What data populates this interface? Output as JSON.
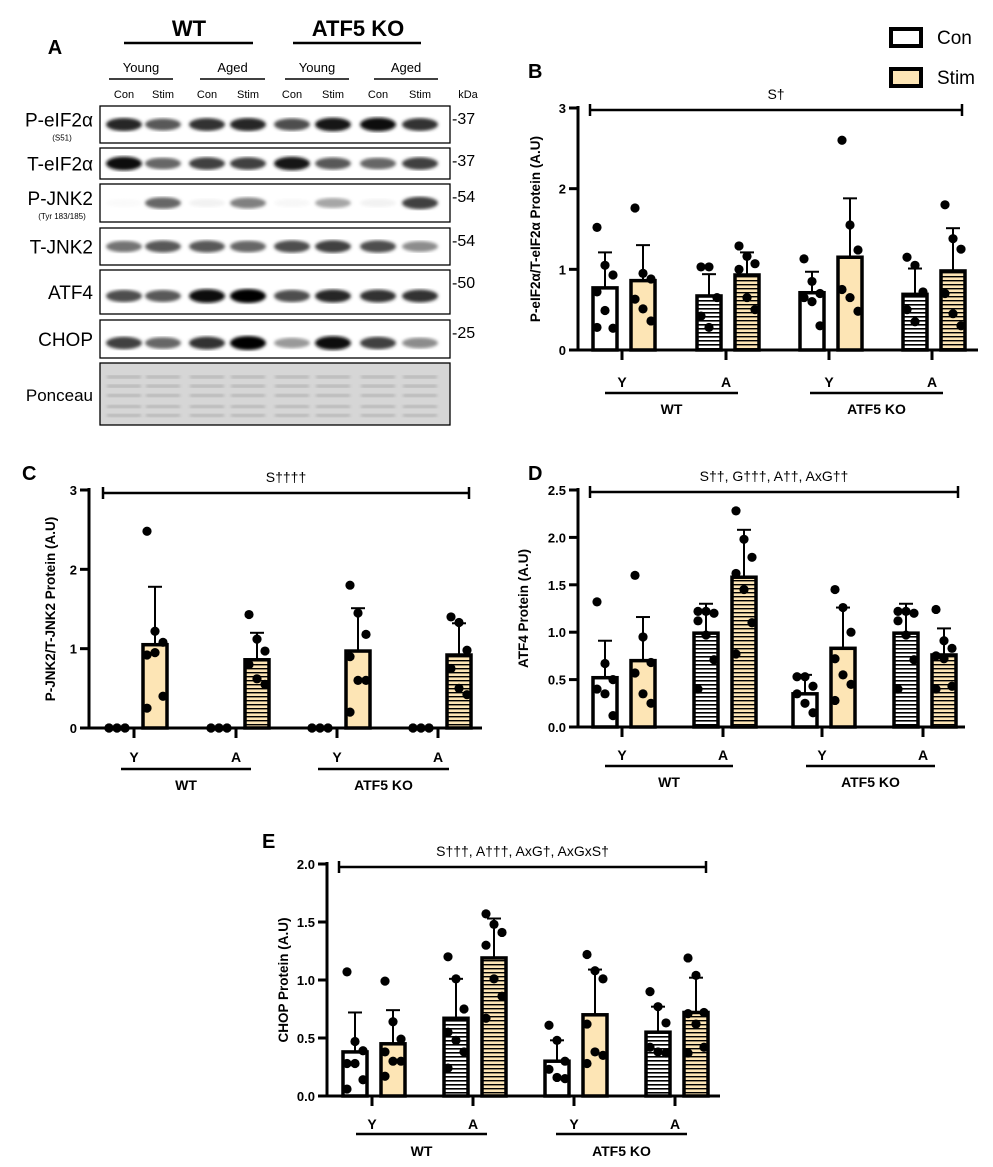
{
  "colors": {
    "con": "#ffffff",
    "stim": "#fde5b5",
    "ink": "#000000",
    "ponceau": "#d6d6d6"
  },
  "legend": {
    "items": [
      {
        "label": "Con",
        "color": "#ffffff"
      },
      {
        "label": "Stim",
        "color": "#fde5b5"
      }
    ]
  },
  "blot": {
    "panel": "A",
    "genotypes": [
      "WT",
      "ATF5 KO"
    ],
    "ages": [
      "Young",
      "Aged",
      "Young",
      "Aged"
    ],
    "lanes": [
      "Con",
      "Stim",
      "Con",
      "Stim",
      "Con",
      "Stim",
      "Con",
      "Stim"
    ],
    "kda_label": "kDa",
    "rows": [
      {
        "label": "P-eIF2α",
        "sub": "(S51)",
        "kda": "-37",
        "band_intensity": [
          0.85,
          0.65,
          0.8,
          0.85,
          0.7,
          0.9,
          0.95,
          0.8
        ]
      },
      {
        "label": "T-eIF2α",
        "sub": "",
        "kda": "-37",
        "band_intensity": [
          0.95,
          0.6,
          0.75,
          0.75,
          0.9,
          0.65,
          0.6,
          0.75
        ]
      },
      {
        "label": "P-JNK2",
        "sub": "(Tyr 183/185)",
        "kda": "-54",
        "band_intensity": [
          0.02,
          0.6,
          0.05,
          0.5,
          0.03,
          0.35,
          0.05,
          0.75
        ]
      },
      {
        "label": "T-JNK2",
        "sub": "",
        "kda": "-54",
        "band_intensity": [
          0.55,
          0.65,
          0.65,
          0.6,
          0.7,
          0.75,
          0.7,
          0.45
        ]
      },
      {
        "label": "ATF4",
        "sub": "",
        "kda": "-50",
        "band_intensity": [
          0.7,
          0.65,
          0.95,
          1.0,
          0.7,
          0.85,
          0.8,
          0.8
        ]
      },
      {
        "label": "CHOP",
        "sub": "",
        "kda": "-25",
        "band_intensity": [
          0.75,
          0.6,
          0.8,
          1.0,
          0.4,
          0.95,
          0.75,
          0.45
        ]
      },
      {
        "label": "Ponceau",
        "sub": "",
        "kda": "",
        "band_intensity": [
          0.5,
          0.5,
          0.5,
          0.5,
          0.5,
          0.5,
          0.5,
          0.5
        ]
      }
    ]
  },
  "chart_data": [
    {
      "panel": "B",
      "type": "bar",
      "ylabel": "P-eIF2α/T-eIF2α Protein (A.U)",
      "ylim": [
        0,
        3
      ],
      "yticks": [
        "0",
        "1",
        "2",
        "3"
      ],
      "significance": "S†",
      "age_labels": [
        "Y",
        "A",
        "Y",
        "A"
      ],
      "genotype_labels": [
        "WT",
        "ATF5 KO"
      ],
      "groups": [
        {
          "age": "Y",
          "genotype": "WT",
          "con": {
            "mean": 0.77,
            "sd_top": 1.21,
            "points": [
              1.52,
              1.05,
              0.93,
              0.72,
              0.49,
              0.27,
              0.28
            ]
          },
          "stim": {
            "mean": 0.86,
            "sd_top": 1.3,
            "points": [
              1.76,
              0.95,
              0.88,
              0.63,
              0.51,
              0.36
            ]
          }
        },
        {
          "age": "A",
          "genotype": "WT",
          "con": {
            "mean": 0.67,
            "sd_top": 0.94,
            "points": [
              1.03,
              1.03,
              0.65,
              0.42,
              0.28
            ]
          },
          "stim": {
            "mean": 0.93,
            "sd_top": 1.21,
            "points": [
              1.29,
              1.16,
              1.07,
              1.0,
              0.65,
              0.5
            ]
          }
        },
        {
          "age": "Y",
          "genotype": "ATF5 KO",
          "con": {
            "mean": 0.71,
            "sd_top": 0.97,
            "points": [
              1.13,
              0.85,
              0.7,
              0.65,
              0.6,
              0.3
            ]
          },
          "stim": {
            "mean": 1.15,
            "sd_top": 1.88,
            "points": [
              2.6,
              1.55,
              1.24,
              0.75,
              0.65,
              0.48
            ]
          }
        },
        {
          "age": "A",
          "genotype": "ATF5 KO",
          "con": {
            "mean": 0.69,
            "sd_top": 1.01,
            "points": [
              1.15,
              1.05,
              0.72,
              0.5,
              0.35
            ]
          },
          "stim": {
            "mean": 0.98,
            "sd_top": 1.51,
            "points": [
              1.8,
              1.38,
              1.25,
              0.7,
              0.45,
              0.3
            ]
          }
        }
      ]
    },
    {
      "panel": "C",
      "type": "bar",
      "ylabel": "P-JNK2/T-JNK2 Protein (A.U)",
      "ylim": [
        0,
        3
      ],
      "yticks": [
        "0",
        "1",
        "2",
        "3"
      ],
      "significance": "S††††",
      "age_labels": [
        "Y",
        "A",
        "Y",
        "A"
      ],
      "genotype_labels": [
        "WT",
        "ATF5 KO"
      ],
      "groups": [
        {
          "age": "Y",
          "genotype": "WT",
          "con": {
            "mean": 0,
            "sd_top": 0,
            "points": [
              0,
              0,
              0,
              0,
              0,
              0
            ]
          },
          "stim": {
            "mean": 1.05,
            "sd_top": 1.78,
            "points": [
              2.48,
              1.22,
              1.08,
              0.92,
              0.95,
              0.4,
              0.25
            ]
          }
        },
        {
          "age": "A",
          "genotype": "WT",
          "con": {
            "mean": 0,
            "sd_top": 0,
            "points": [
              0,
              0,
              0,
              0,
              0,
              0
            ]
          },
          "stim": {
            "mean": 0.86,
            "sd_top": 1.2,
            "points": [
              1.43,
              1.12,
              0.97,
              0.8,
              0.62,
              0.55
            ]
          }
        },
        {
          "age": "Y",
          "genotype": "ATF5 KO",
          "con": {
            "mean": 0,
            "sd_top": 0,
            "points": [
              0,
              0,
              0,
              0,
              0,
              0
            ]
          },
          "stim": {
            "mean": 0.97,
            "sd_top": 1.51,
            "points": [
              1.8,
              1.45,
              1.18,
              0.9,
              0.6,
              0.6,
              0.2
            ]
          }
        },
        {
          "age": "A",
          "genotype": "ATF5 KO",
          "con": {
            "mean": 0,
            "sd_top": 0,
            "points": [
              0,
              0,
              0,
              0,
              0,
              0
            ]
          },
          "stim": {
            "mean": 0.92,
            "sd_top": 1.32,
            "points": [
              1.4,
              1.33,
              0.98,
              0.75,
              0.5,
              0.42
            ]
          }
        }
      ]
    },
    {
      "panel": "D",
      "type": "bar",
      "ylabel": "ATF4 Protein (A.U)",
      "ylim": [
        0,
        2.5
      ],
      "yticks": [
        "0.0",
        "0.5",
        "1.0",
        "1.5",
        "2.0",
        "2.5"
      ],
      "significance": "S††, G†††, A††, AxG††",
      "age_labels": [
        "Y",
        "A",
        "Y",
        "A"
      ],
      "genotype_labels": [
        "WT",
        "ATF5 KO"
      ],
      "groups": [
        {
          "age": "Y",
          "genotype": "WT",
          "con": {
            "mean": 0.52,
            "sd_top": 0.91,
            "points": [
              1.32,
              0.67,
              0.5,
              0.4,
              0.35,
              0.12
            ]
          },
          "stim": {
            "mean": 0.7,
            "sd_top": 1.16,
            "points": [
              1.6,
              0.95,
              0.68,
              0.57,
              0.35,
              0.25
            ]
          }
        },
        {
          "age": "A",
          "genotype": "WT",
          "con": {
            "mean": 0.99,
            "sd_top": 1.3,
            "points": [
              1.22,
              1.22,
              1.2,
              1.12,
              0.97,
              0.71,
              0.4
            ]
          },
          "stim": {
            "mean": 1.58,
            "sd_top": 2.08,
            "points": [
              2.28,
              1.98,
              1.79,
              1.62,
              1.45,
              1.1,
              0.77
            ]
          }
        },
        {
          "age": "Y",
          "genotype": "ATF5 KO",
          "con": {
            "mean": 0.35,
            "sd_top": 0.55,
            "points": [
              0.53,
              0.53,
              0.43,
              0.35,
              0.25,
              0.15
            ]
          },
          "stim": {
            "mean": 0.83,
            "sd_top": 1.26,
            "points": [
              1.45,
              1.26,
              1.0,
              0.72,
              0.55,
              0.45,
              0.28
            ]
          }
        },
        {
          "age": "A",
          "genotype": "ATF5 KO",
          "con": {
            "mean": 0.99,
            "sd_top": 1.3,
            "points": [
              1.22,
              1.22,
              1.2,
              1.12,
              0.97,
              0.71,
              0.4
            ]
          },
          "stim": {
            "mean": 0.76,
            "sd_top": 1.04,
            "points": [
              1.24,
              0.91,
              0.83,
              0.75,
              0.72,
              0.43,
              0.4
            ]
          }
        }
      ]
    },
    {
      "panel": "E",
      "type": "bar",
      "ylabel": "CHOP Protein (A.U)",
      "ylim": [
        0,
        2.0
      ],
      "yticks": [
        "0.0",
        "0.5",
        "1.0",
        "1.5",
        "2.0"
      ],
      "significance": "S†††, A†††, AxG†, AxGxS†",
      "age_labels": [
        "Y",
        "A",
        "Y",
        "A"
      ],
      "genotype_labels": [
        "WT",
        "ATF5 KO"
      ],
      "groups": [
        {
          "age": "Y",
          "genotype": "WT",
          "con": {
            "mean": 0.38,
            "sd_top": 0.72,
            "points": [
              1.07,
              0.47,
              0.39,
              0.28,
              0.28,
              0.14,
              0.06
            ]
          },
          "stim": {
            "mean": 0.45,
            "sd_top": 0.74,
            "points": [
              0.99,
              0.64,
              0.49,
              0.38,
              0.3,
              0.3,
              0.17
            ]
          }
        },
        {
          "age": "A",
          "genotype": "WT",
          "con": {
            "mean": 0.67,
            "sd_top": 1.01,
            "points": [
              1.2,
              1.01,
              0.75,
              0.55,
              0.48,
              0.38,
              0.24
            ]
          },
          "stim": {
            "mean": 1.19,
            "sd_top": 1.53,
            "points": [
              1.57,
              1.48,
              1.41,
              1.3,
              1.01,
              0.86,
              0.67
            ]
          }
        },
        {
          "age": "Y",
          "genotype": "ATF5 KO",
          "con": {
            "mean": 0.3,
            "sd_top": 0.48,
            "points": [
              0.61,
              0.48,
              0.3,
              0.23,
              0.16,
              0.15
            ]
          },
          "stim": {
            "mean": 0.7,
            "sd_top": 1.09,
            "points": [
              1.22,
              1.08,
              1.01,
              0.62,
              0.38,
              0.35,
              0.28
            ]
          }
        },
        {
          "age": "A",
          "genotype": "ATF5 KO",
          "con": {
            "mean": 0.55,
            "sd_top": 0.77,
            "points": [
              0.9,
              0.77,
              0.63,
              0.42,
              0.38,
              0.37
            ]
          },
          "stim": {
            "mean": 0.72,
            "sd_top": 1.02,
            "points": [
              1.19,
              1.04,
              0.72,
              0.71,
              0.62,
              0.42,
              0.37
            ]
          }
        }
      ]
    }
  ]
}
